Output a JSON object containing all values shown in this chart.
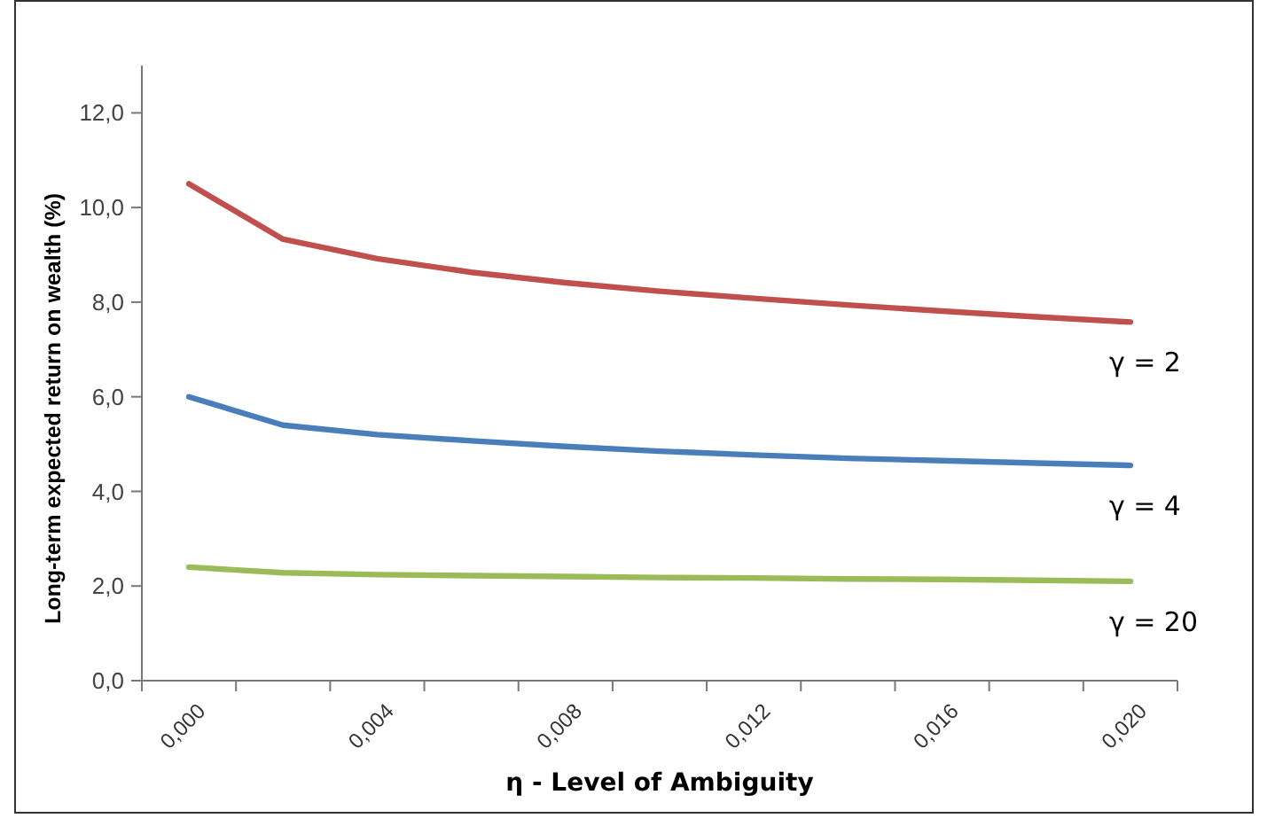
{
  "chart_data": {
    "type": "line",
    "xlabel": "η - Level of Ambiguity",
    "ylabel": "Long-term expected return on wealth (%)",
    "categories": [
      "0,000",
      null,
      "0,004",
      null,
      "0,008",
      null,
      "0,012",
      null,
      "0,016",
      null,
      "0,020"
    ],
    "ylim": [
      0,
      13
    ],
    "yticks": [
      {
        "value": 0,
        "label": "0,0"
      },
      {
        "value": 2,
        "label": "2,0"
      },
      {
        "value": 4,
        "label": "4,0"
      },
      {
        "value": 6,
        "label": "6,0"
      },
      {
        "value": 8,
        "label": "8,0"
      },
      {
        "value": 10,
        "label": "10,0"
      },
      {
        "value": 12,
        "label": "12,0"
      }
    ],
    "grid": false,
    "marker": "none",
    "series": [
      {
        "name": "γ = 2",
        "color": "#c0504d",
        "values": [
          10.5,
          9.33,
          8.92,
          8.63,
          8.41,
          8.23,
          8.08,
          7.94,
          7.81,
          7.69,
          7.58
        ]
      },
      {
        "name": "γ = 4",
        "color": "#4a7ebb",
        "values": [
          6.0,
          5.4,
          5.2,
          5.07,
          4.95,
          4.85,
          4.77,
          4.7,
          4.65,
          4.6,
          4.55
        ]
      },
      {
        "name": "γ = 20",
        "color": "#9bbb59",
        "values": [
          2.4,
          2.28,
          2.24,
          2.22,
          2.2,
          2.18,
          2.17,
          2.15,
          2.14,
          2.12,
          2.1
        ]
      }
    ]
  }
}
